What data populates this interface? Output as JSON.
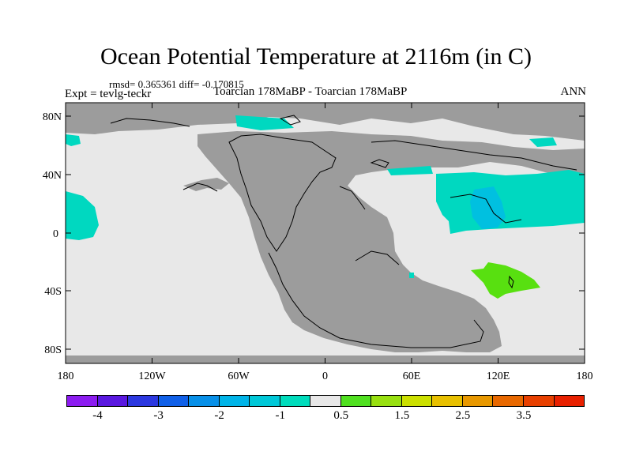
{
  "plot": {
    "title": "Ocean Potential Temperature at 2116m (in C)",
    "stats": "rmsd= 0.365361 diff= -0.170815",
    "expt": "Expt = tevlg-teckr",
    "subtitle": "Toarcian 178MaBP - Toarcian 178MaBP",
    "season": "ANN"
  },
  "axes": {
    "y_ticks": [
      "80N",
      "40N",
      "0",
      "40S",
      "80S"
    ],
    "x_ticks": [
      "180",
      "120W",
      "60W",
      "0",
      "60E",
      "120E",
      "180"
    ]
  },
  "colors": {
    "land": "#9c9c9c",
    "ocean_neutral": "#e8e8e8",
    "cyan_minus1": "#00d8c0",
    "light_blue_minus1_5": "#00c0e0",
    "green_plus0_5": "#58e010"
  },
  "colorbar": {
    "colors": [
      "#8c1cf0",
      "#5a18e0",
      "#2c38e0",
      "#1060e8",
      "#0890e8",
      "#00b4e8",
      "#00c8d8",
      "#00dcbc",
      "#e8e8e8",
      "#50e020",
      "#98e010",
      "#cce000",
      "#e8c000",
      "#e89800",
      "#e86800",
      "#e84000",
      "#e82000"
    ],
    "labels": [
      "-4",
      "-3",
      "-2",
      "-1",
      "0.5",
      "1.5",
      "2.5",
      "3.5"
    ]
  }
}
